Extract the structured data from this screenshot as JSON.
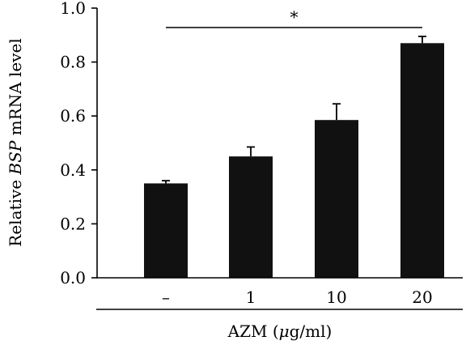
{
  "chart_data": {
    "type": "bar",
    "categories": [
      "–",
      "1",
      "10",
      "20"
    ],
    "values": [
      0.35,
      0.45,
      0.585,
      0.87
    ],
    "errors": [
      0.01,
      0.035,
      0.06,
      0.025
    ],
    "ylabel_prefix": "Relative ",
    "ylabel_gene": "BSP",
    "ylabel_suffix": " mRNA level",
    "xlabel_prefix": "AZM (",
    "xlabel_unit_mu": "μ",
    "xlabel_suffix": "g/ml)",
    "ylim": [
      0,
      1.0
    ],
    "yticks": [
      "0.0",
      "0.2",
      "0.4",
      "0.6",
      "0.8",
      "1.0"
    ],
    "significance": {
      "label": "*",
      "from_category": 0,
      "to_category": 3
    },
    "colors": {
      "bar": "#111111"
    }
  }
}
